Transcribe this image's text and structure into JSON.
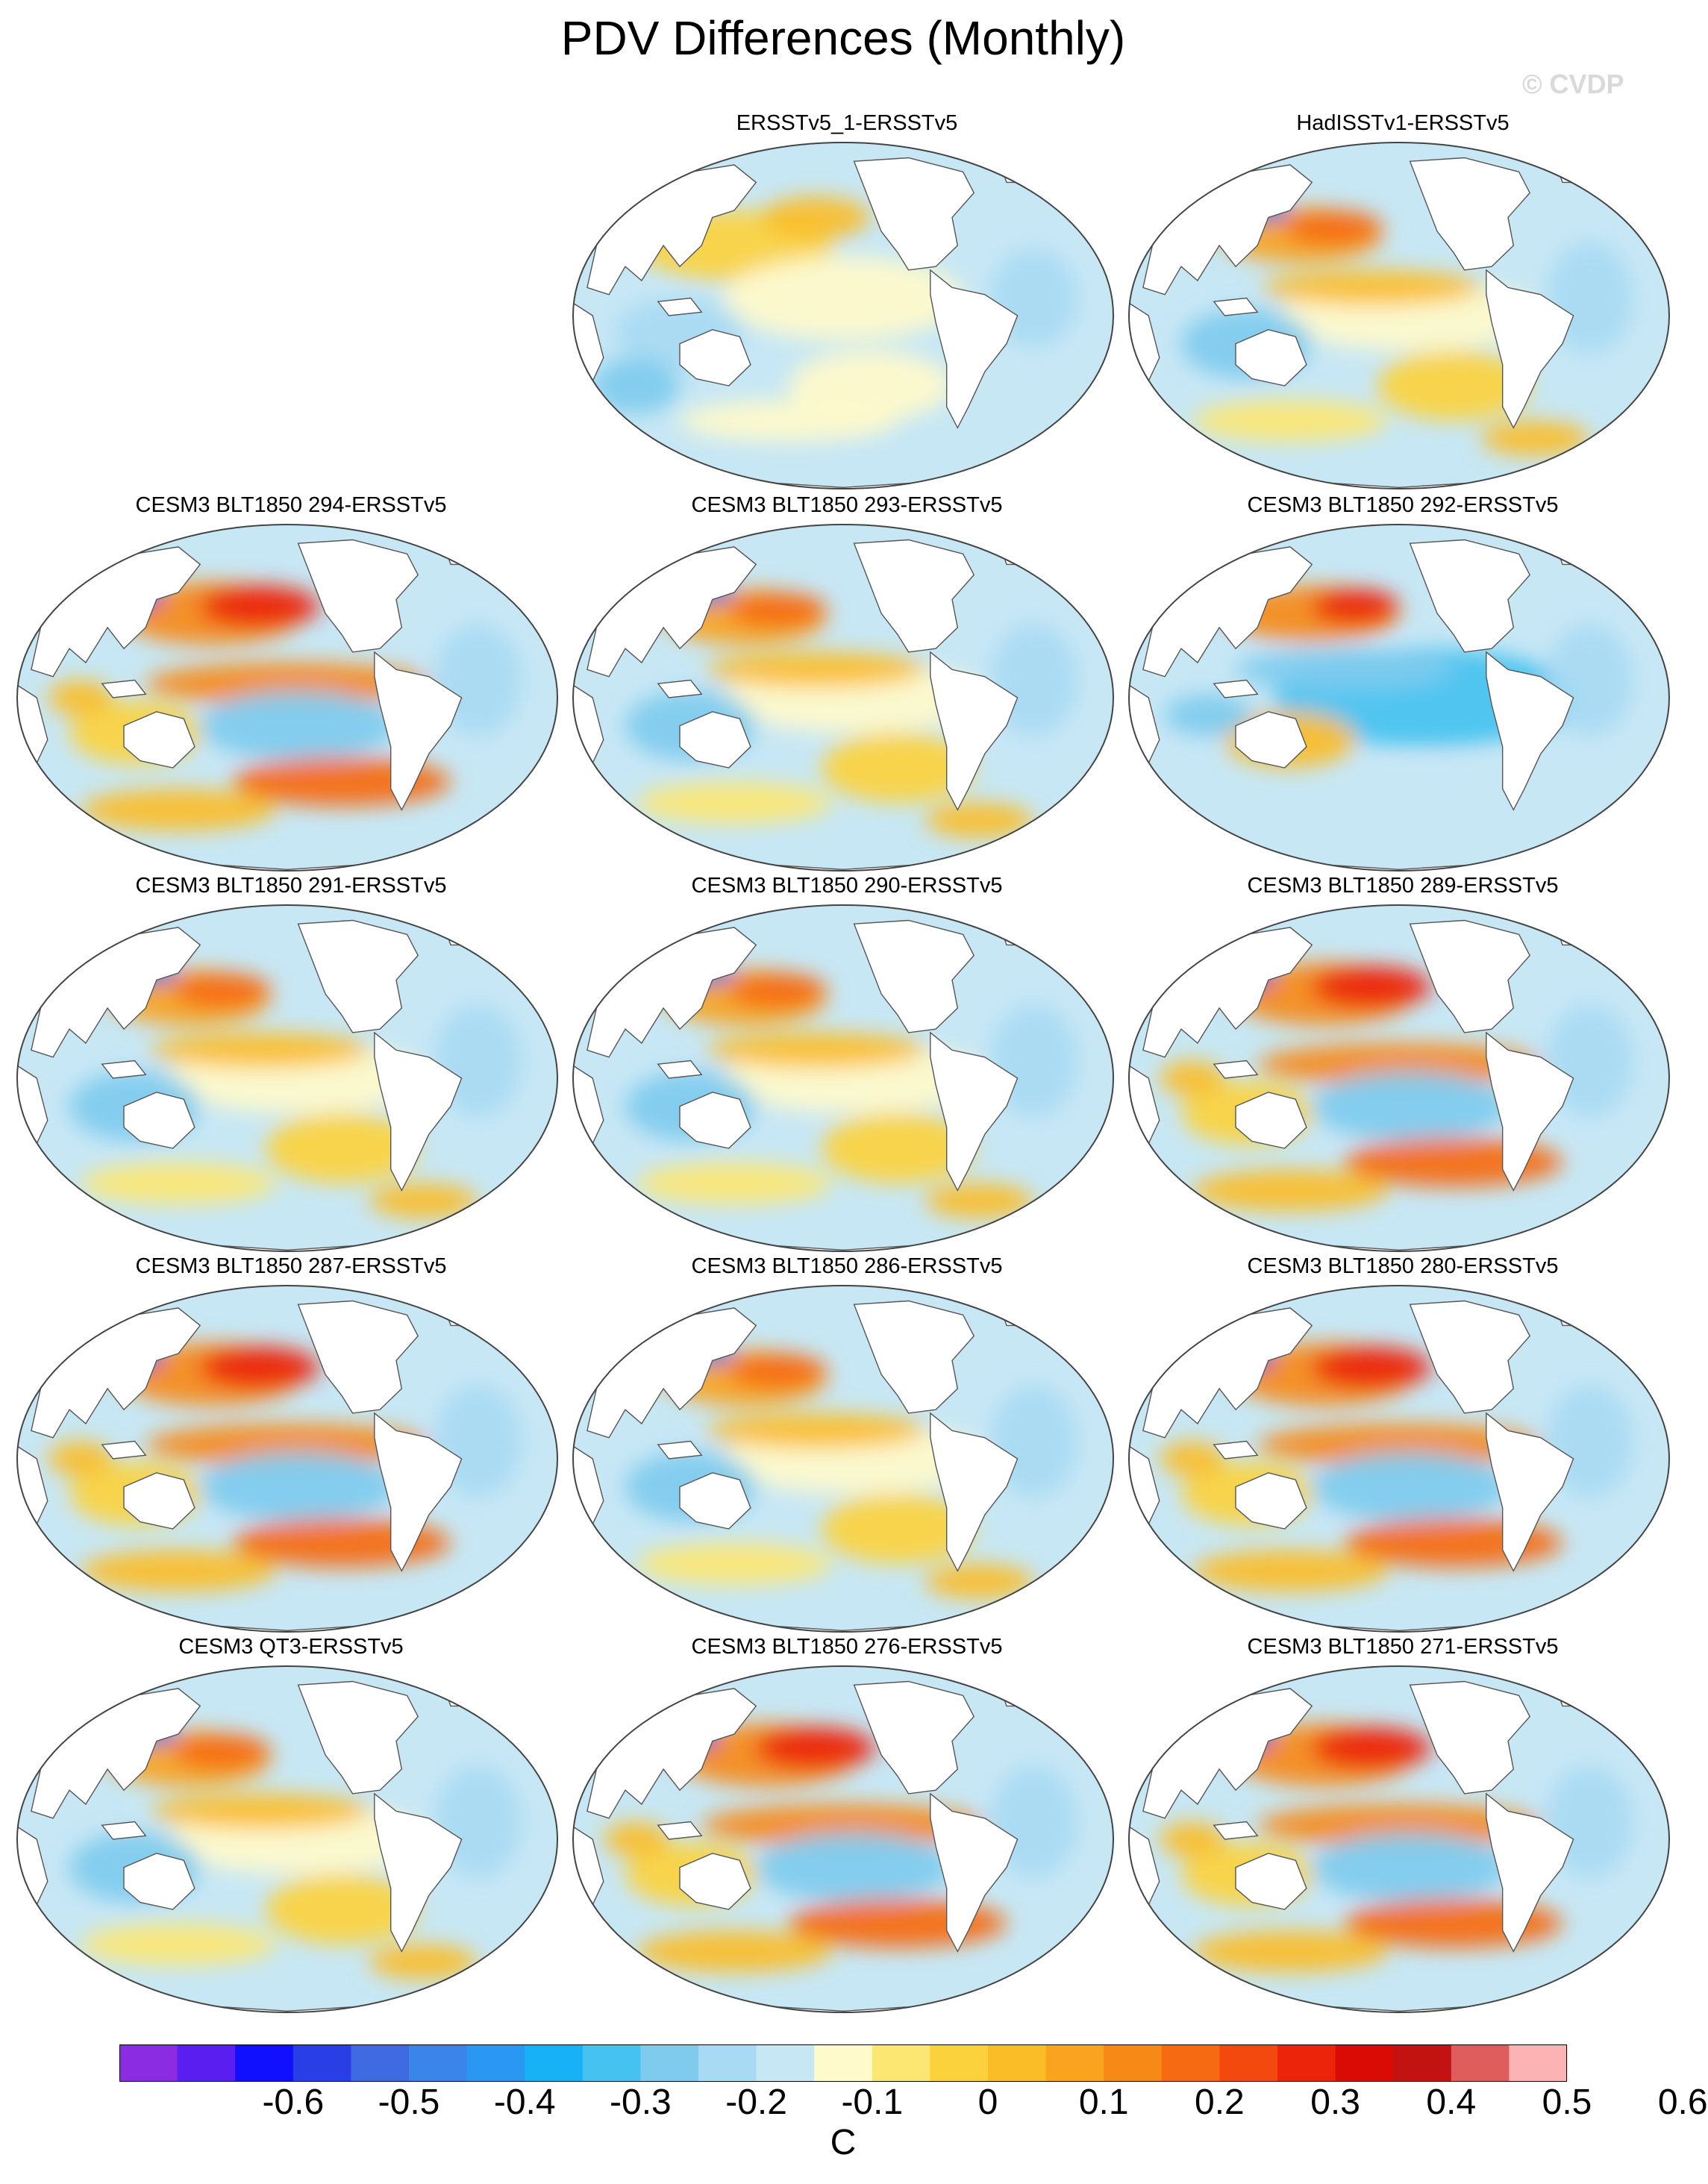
{
  "title": "PDV Differences (Monthly)",
  "watermark": "© CVDP",
  "panels": [
    {
      "id": "ersst1",
      "label": "ERSSTv5_1-ERSSTv5",
      "row": 0,
      "col": 1,
      "pattern": "weak"
    },
    {
      "id": "hadisst",
      "label": "HadISSTv1-ERSSTv5",
      "row": 0,
      "col": 2,
      "pattern": "moderate"
    },
    {
      "id": "b294",
      "label": "CESM3 BLT1850 294-ERSSTv5",
      "row": 1,
      "col": 0,
      "pattern": "strong"
    },
    {
      "id": "b293",
      "label": "CESM3 BLT1850 293-ERSSTv5",
      "row": 1,
      "col": 1,
      "pattern": "moderate"
    },
    {
      "id": "b292",
      "label": "CESM3 BLT1850 292-ERSSTv5",
      "row": 1,
      "col": 2,
      "pattern": "cold"
    },
    {
      "id": "b291",
      "label": "CESM3 BLT1850 291-ERSSTv5",
      "row": 2,
      "col": 0,
      "pattern": "moderate"
    },
    {
      "id": "b290",
      "label": "CESM3 BLT1850 290-ERSSTv5",
      "row": 2,
      "col": 1,
      "pattern": "moderate"
    },
    {
      "id": "b289",
      "label": "CESM3 BLT1850 289-ERSSTv5",
      "row": 2,
      "col": 2,
      "pattern": "strong"
    },
    {
      "id": "b287",
      "label": "CESM3 BLT1850 287-ERSSTv5",
      "row": 3,
      "col": 0,
      "pattern": "strong"
    },
    {
      "id": "b286",
      "label": "CESM3 BLT1850 286-ERSSTv5",
      "row": 3,
      "col": 1,
      "pattern": "moderate"
    },
    {
      "id": "b280",
      "label": "CESM3 BLT1850 280-ERSSTv5",
      "row": 3,
      "col": 2,
      "pattern": "strong"
    },
    {
      "id": "qt3",
      "label": "CESM3 QT3-ERSSTv5",
      "row": 4,
      "col": 0,
      "pattern": "moderate"
    },
    {
      "id": "b276",
      "label": "CESM3 BLT1850 276-ERSSTv5",
      "row": 4,
      "col": 1,
      "pattern": "strong"
    },
    {
      "id": "b271",
      "label": "CESM3 BLT1850 271-ERSSTv5",
      "row": 4,
      "col": 2,
      "pattern": "strong"
    }
  ],
  "colorbar": {
    "units": "C",
    "colors": [
      "#8b2be2",
      "#5a1ef0",
      "#1010ff",
      "#2a3ee6",
      "#3f6be2",
      "#3a85ea",
      "#2a98f2",
      "#17b1f7",
      "#45c2f0",
      "#7ecbee",
      "#a8daf3",
      "#c7e7f5",
      "#fffacb",
      "#fde773",
      "#fcd23c",
      "#fbbd27",
      "#f9a31e",
      "#f78917",
      "#f66a12",
      "#f3480e",
      "#ec240a",
      "#da0a05",
      "#c21212",
      "#e05d5d",
      "#fbb3b3"
    ],
    "tick_labels": [
      "-0.6",
      "-0.5",
      "-0.4",
      "-0.3",
      "-0.2",
      "-0.1",
      "0",
      "0.1",
      "0.2",
      "0.3",
      "0.4",
      "0.5",
      "0.6"
    ]
  },
  "palette": {
    "land": "#ffffff",
    "coast": "#555555",
    "ocean_base": "#c7e7f5"
  }
}
